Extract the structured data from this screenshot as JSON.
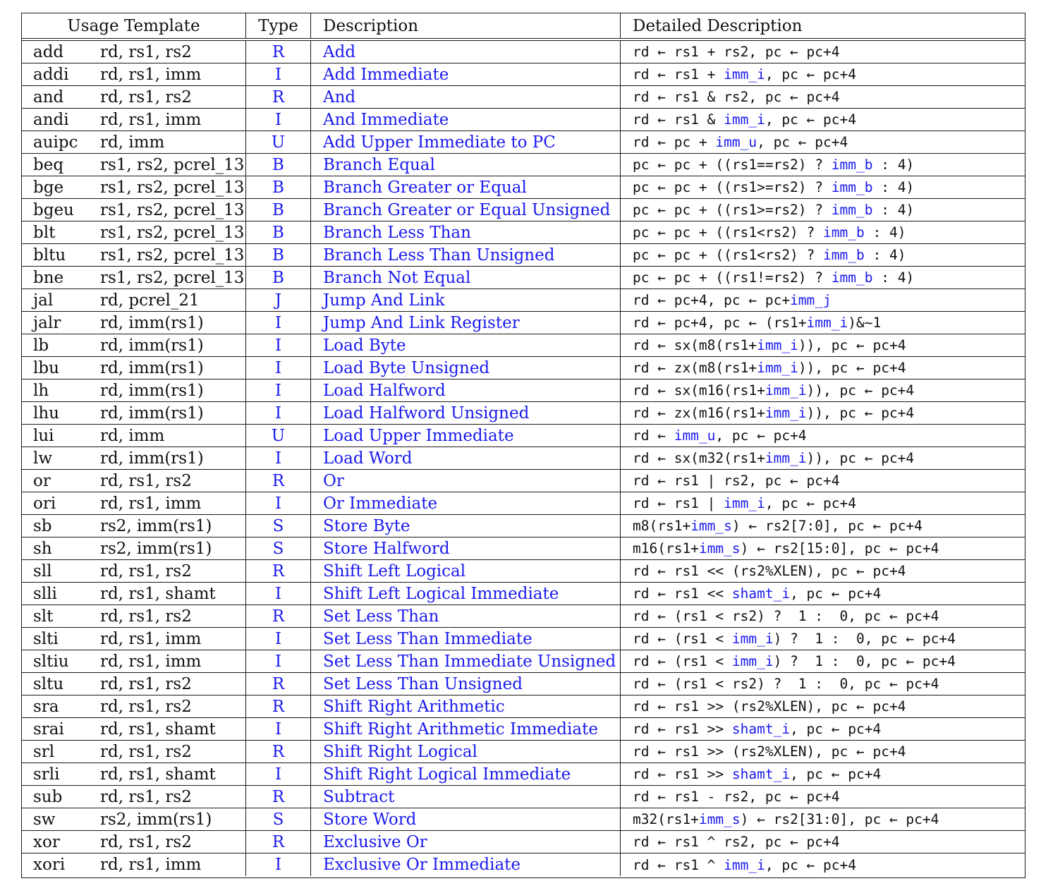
{
  "headers": {
    "usage": "Usage Template",
    "type": "Type",
    "description": "Description",
    "detailed": "Detailed Description"
  },
  "colors": {
    "link": "#1a1aee",
    "text": "#111111",
    "border": "#1a1a1a"
  },
  "rows": [
    {
      "mnemonic": "add",
      "operands": "rd, rs1, rs2",
      "type": "R",
      "description": "Add",
      "detail": "rd ← rs1 + rs2, pc ← pc+4"
    },
    {
      "mnemonic": "addi",
      "operands": "rd, rs1, imm",
      "type": "I",
      "description": "Add Immediate",
      "detail": "rd ← rs1 + imm_i, pc ← pc+4"
    },
    {
      "mnemonic": "and",
      "operands": "rd, rs1, rs2",
      "type": "R",
      "description": "And",
      "detail": "rd ← rs1 & rs2, pc ← pc+4"
    },
    {
      "mnemonic": "andi",
      "operands": "rd, rs1, imm",
      "type": "I",
      "description": "And Immediate",
      "detail": "rd ← rs1 & imm_i, pc ← pc+4"
    },
    {
      "mnemonic": "auipc",
      "operands": "rd, imm",
      "type": "U",
      "description": "Add Upper Immediate to PC",
      "detail": "rd ← pc + imm_u, pc ← pc+4"
    },
    {
      "mnemonic": "beq",
      "operands": "rs1, rs2, pcrel_13",
      "type": "B",
      "description": "Branch Equal",
      "detail": "pc ← pc + ((rs1==rs2) ? imm_b : 4)"
    },
    {
      "mnemonic": "bge",
      "operands": "rs1, rs2, pcrel_13",
      "type": "B",
      "description": "Branch Greater or Equal",
      "detail": "pc ← pc + ((rs1>=rs2) ? imm_b : 4)"
    },
    {
      "mnemonic": "bgeu",
      "operands": "rs1, rs2, pcrel_13",
      "type": "B",
      "description": "Branch Greater or Equal Unsigned",
      "detail": "pc ← pc + ((rs1>=rs2) ? imm_b : 4)"
    },
    {
      "mnemonic": "blt",
      "operands": "rs1, rs2, pcrel_13",
      "type": "B",
      "description": "Branch Less Than",
      "detail": "pc ← pc + ((rs1<rs2) ? imm_b : 4)"
    },
    {
      "mnemonic": "bltu",
      "operands": "rs1, rs2, pcrel_13",
      "type": "B",
      "description": "Branch Less Than Unsigned",
      "detail": "pc ← pc + ((rs1<rs2) ? imm_b : 4)"
    },
    {
      "mnemonic": "bne",
      "operands": "rs1, rs2, pcrel_13",
      "type": "B",
      "description": "Branch Not Equal",
      "detail": "pc ← pc + ((rs1!=rs2) ? imm_b : 4)"
    },
    {
      "mnemonic": "jal",
      "operands": "rd, pcrel_21",
      "type": "J",
      "description": "Jump And Link",
      "detail": "rd ← pc+4, pc ← pc+imm_j"
    },
    {
      "mnemonic": "jalr",
      "operands": "rd, imm(rs1)",
      "type": "I",
      "description": "Jump And Link Register",
      "detail": "rd ← pc+4, pc ← (rs1+imm_i)&~1"
    },
    {
      "mnemonic": "lb",
      "operands": "rd, imm(rs1)",
      "type": "I",
      "description": "Load Byte",
      "detail": "rd ← sx(m8(rs1+imm_i)), pc ← pc+4"
    },
    {
      "mnemonic": "lbu",
      "operands": "rd, imm(rs1)",
      "type": "I",
      "description": "Load Byte Unsigned",
      "detail": "rd ← zx(m8(rs1+imm_i)), pc ← pc+4"
    },
    {
      "mnemonic": "lh",
      "operands": "rd, imm(rs1)",
      "type": "I",
      "description": "Load Halfword",
      "detail": "rd ← sx(m16(rs1+imm_i)), pc ← pc+4"
    },
    {
      "mnemonic": "lhu",
      "operands": "rd, imm(rs1)",
      "type": "I",
      "description": "Load Halfword Unsigned",
      "detail": "rd ← zx(m16(rs1+imm_i)), pc ← pc+4"
    },
    {
      "mnemonic": "lui",
      "operands": "rd, imm",
      "type": "U",
      "description": "Load Upper Immediate",
      "detail": "rd ← imm_u, pc ← pc+4"
    },
    {
      "mnemonic": "lw",
      "operands": "rd, imm(rs1)",
      "type": "I",
      "description": "Load Word",
      "detail": "rd ← sx(m32(rs1+imm_i)), pc ← pc+4"
    },
    {
      "mnemonic": "or",
      "operands": "rd, rs1, rs2",
      "type": "R",
      "description": "Or",
      "detail": "rd ← rs1 | rs2, pc ← pc+4"
    },
    {
      "mnemonic": "ori",
      "operands": "rd, rs1, imm",
      "type": "I",
      "description": "Or Immediate",
      "detail": "rd ← rs1 | imm_i, pc ← pc+4"
    },
    {
      "mnemonic": "sb",
      "operands": "rs2, imm(rs1)",
      "type": "S",
      "description": "Store Byte",
      "detail": "m8(rs1+imm_s) ← rs2[7:0], pc ← pc+4"
    },
    {
      "mnemonic": "sh",
      "operands": "rs2, imm(rs1)",
      "type": "S",
      "description": "Store Halfword",
      "detail": "m16(rs1+imm_s) ← rs2[15:0], pc ← pc+4"
    },
    {
      "mnemonic": "sll",
      "operands": "rd, rs1, rs2",
      "type": "R",
      "description": "Shift Left Logical",
      "detail": "rd ← rs1 << (rs2%XLEN), pc ← pc+4"
    },
    {
      "mnemonic": "slli",
      "operands": "rd, rs1, shamt",
      "type": "I",
      "description": "Shift Left Logical Immediate",
      "detail": "rd ← rs1 << shamt_i, pc ← pc+4"
    },
    {
      "mnemonic": "slt",
      "operands": "rd, rs1, rs2",
      "type": "R",
      "description": "Set Less Than",
      "detail": "rd ← (rs1 < rs2) ?  1 :  0, pc ← pc+4"
    },
    {
      "mnemonic": "slti",
      "operands": "rd, rs1, imm",
      "type": "I",
      "description": "Set Less Than Immediate",
      "detail": "rd ← (rs1 < imm_i) ?  1 :  0, pc ← pc+4"
    },
    {
      "mnemonic": "sltiu",
      "operands": "rd, rs1, imm",
      "type": "I",
      "description": "Set Less Than Immediate Unsigned",
      "detail": "rd ← (rs1 < imm_i) ?  1 :  0, pc ← pc+4"
    },
    {
      "mnemonic": "sltu",
      "operands": "rd, rs1, rs2",
      "type": "R",
      "description": "Set Less Than Unsigned",
      "detail": "rd ← (rs1 < rs2) ?  1 :  0, pc ← pc+4"
    },
    {
      "mnemonic": "sra",
      "operands": "rd, rs1, rs2",
      "type": "R",
      "description": "Shift Right Arithmetic",
      "detail": "rd ← rs1 >> (rs2%XLEN), pc ← pc+4"
    },
    {
      "mnemonic": "srai",
      "operands": "rd, rs1, shamt",
      "type": "I",
      "description": "Shift Right Arithmetic Immediate",
      "detail": "rd ← rs1 >> shamt_i, pc ← pc+4"
    },
    {
      "mnemonic": "srl",
      "operands": "rd, rs1, rs2",
      "type": "R",
      "description": "Shift Right Logical",
      "detail": "rd ← rs1 >> (rs2%XLEN), pc ← pc+4"
    },
    {
      "mnemonic": "srli",
      "operands": "rd, rs1, shamt",
      "type": "I",
      "description": "Shift Right Logical Immediate",
      "detail": "rd ← rs1 >> shamt_i, pc ← pc+4"
    },
    {
      "mnemonic": "sub",
      "operands": "rd, rs1, rs2",
      "type": "R",
      "description": "Subtract",
      "detail": "rd ← rs1 - rs2, pc ← pc+4"
    },
    {
      "mnemonic": "sw",
      "operands": "rs2, imm(rs1)",
      "type": "S",
      "description": "Store Word",
      "detail": "m32(rs1+imm_s) ← rs2[31:0], pc ← pc+4"
    },
    {
      "mnemonic": "xor",
      "operands": "rd, rs1, rs2",
      "type": "R",
      "description": "Exclusive Or",
      "detail": "rd ← rs1 ^ rs2, pc ← pc+4"
    },
    {
      "mnemonic": "xori",
      "operands": "rd, rs1, imm",
      "type": "I",
      "description": "Exclusive Or Immediate",
      "detail": "rd ← rs1 ^ imm_i, pc ← pc+4"
    }
  ]
}
